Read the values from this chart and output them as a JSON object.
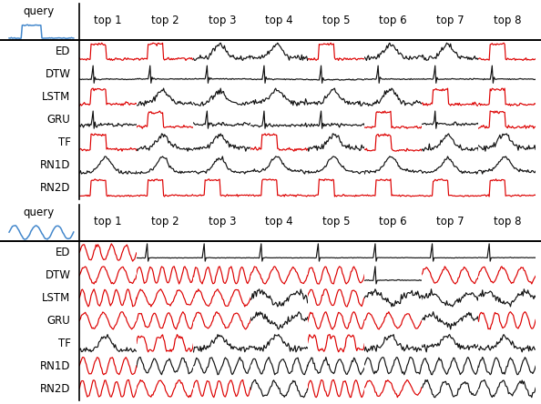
{
  "section1_methods": [
    "ED",
    "DTW",
    "LSTM",
    "GRU",
    "TF",
    "RN1D",
    "RN2D"
  ],
  "section2_methods": [
    "ED",
    "DTW",
    "LSTM",
    "GRU",
    "TF",
    "RN1D",
    "RN2D"
  ],
  "top_labels": [
    "top 1",
    "top 2",
    "top 3",
    "top 4",
    "top 5",
    "top 6",
    "top 7",
    "top 8"
  ],
  "background_color": "#ffffff",
  "red_color": "#dd0000",
  "black_color": "#111111",
  "blue_color": "#4488cc",
  "n_tops": 8,
  "sec1_colors": [
    [
      true,
      true,
      false,
      false,
      true,
      false,
      false,
      true
    ],
    [
      false,
      false,
      false,
      false,
      false,
      false,
      false,
      false
    ],
    [
      true,
      false,
      false,
      false,
      false,
      false,
      true,
      true
    ],
    [
      false,
      true,
      false,
      false,
      false,
      true,
      false,
      true
    ],
    [
      true,
      false,
      false,
      true,
      false,
      true,
      false,
      false
    ],
    [
      false,
      false,
      false,
      false,
      false,
      false,
      false,
      false
    ],
    [
      true,
      true,
      true,
      true,
      true,
      true,
      true,
      true
    ]
  ],
  "sec2_colors": [
    [
      true,
      false,
      false,
      false,
      false,
      false,
      false,
      false
    ],
    [
      true,
      true,
      true,
      true,
      true,
      false,
      true,
      true
    ],
    [
      true,
      true,
      true,
      false,
      true,
      false,
      false,
      false
    ],
    [
      true,
      true,
      true,
      false,
      true,
      true,
      false,
      true
    ],
    [
      false,
      true,
      false,
      false,
      true,
      false,
      false,
      false
    ],
    [
      true,
      false,
      false,
      false,
      false,
      false,
      false,
      false
    ],
    [
      true,
      true,
      true,
      false,
      true,
      true,
      false,
      false
    ]
  ]
}
